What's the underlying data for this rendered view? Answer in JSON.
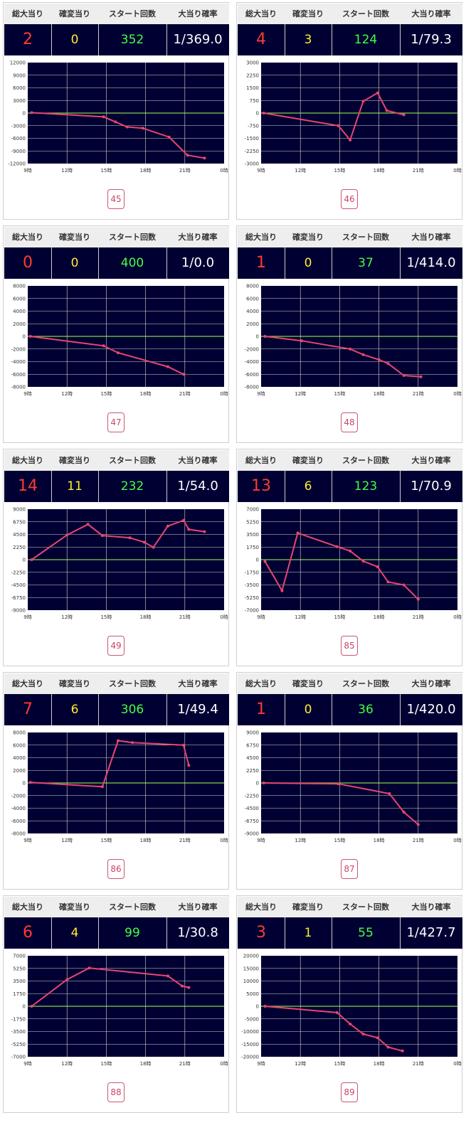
{
  "headers": {
    "total": "総大当り",
    "kakuhen": "確変当り",
    "start": "スタート回数",
    "rate": "大当り確率"
  },
  "x_ticks": [
    "9時",
    "12時",
    "15時",
    "18時",
    "21時",
    "0時"
  ],
  "colors": {
    "panel_bg": "#000033",
    "total": "#ff3b30",
    "kakuhen": "#ffee33",
    "start": "#44ff44",
    "line": "#e8466e",
    "zero_line": "#7fd14a"
  },
  "cards": [
    {
      "id": "45",
      "total": "2",
      "kakuhen": "0",
      "start": "352",
      "rate": "1/369.0",
      "chart_data": {
        "type": "line",
        "y_ticks": [
          "12000",
          "9000",
          "6000",
          "3000",
          "0",
          "-3000",
          "-6000",
          "-9000",
          "-12000"
        ],
        "ylim": [
          -12000,
          12000
        ],
        "xlim": [
          9,
          24
        ],
        "points": [
          [
            9.3,
            100
          ],
          [
            14.8,
            -900
          ],
          [
            15.7,
            -2100
          ],
          [
            16.6,
            -3300
          ],
          [
            17.8,
            -3600
          ],
          [
            19.8,
            -5700
          ],
          [
            21.2,
            -10000
          ],
          [
            22.5,
            -10700
          ]
        ]
      }
    },
    {
      "id": "46",
      "total": "4",
      "kakuhen": "3",
      "start": "124",
      "rate": "1/79.3",
      "chart_data": {
        "type": "line",
        "y_ticks": [
          "3000",
          "2250",
          "1500",
          "750",
          "0",
          "-750",
          "-1500",
          "-2250",
          "-3000"
        ],
        "ylim": [
          -3000,
          3000
        ],
        "xlim": [
          9,
          24
        ],
        "points": [
          [
            9.2,
            0
          ],
          [
            14.9,
            -750
          ],
          [
            15.8,
            -1600
          ],
          [
            16.8,
            700
          ],
          [
            17.9,
            1200
          ],
          [
            18.6,
            150
          ],
          [
            19.9,
            -100
          ]
        ]
      }
    },
    {
      "id": "47",
      "total": "0",
      "kakuhen": "0",
      "start": "400",
      "rate": "1/0.0",
      "chart_data": {
        "type": "line",
        "y_ticks": [
          "8000",
          "6000",
          "4000",
          "2000",
          "0",
          "-2000",
          "-4000",
          "-6000",
          "-8000"
        ],
        "ylim": [
          -8000,
          8000
        ],
        "xlim": [
          9,
          24
        ],
        "points": [
          [
            9.2,
            0
          ],
          [
            14.8,
            -1500
          ],
          [
            15.9,
            -2600
          ],
          [
            19.7,
            -4800
          ],
          [
            20.9,
            -6000
          ]
        ]
      }
    },
    {
      "id": "48",
      "total": "1",
      "kakuhen": "0",
      "start": "37",
      "rate": "1/414.0",
      "chart_data": {
        "type": "line",
        "y_ticks": [
          "8000",
          "6000",
          "4000",
          "2000",
          "0",
          "-2000",
          "-4000",
          "-6000",
          "-8000"
        ],
        "ylim": [
          -8000,
          8000
        ],
        "xlim": [
          9,
          24
        ],
        "points": [
          [
            9.3,
            0
          ],
          [
            12.1,
            -700
          ],
          [
            15.8,
            -2000
          ],
          [
            16.8,
            -2900
          ],
          [
            18.0,
            -3700
          ],
          [
            18.7,
            -4300
          ],
          [
            19.9,
            -6200
          ],
          [
            21.2,
            -6400
          ]
        ]
      }
    },
    {
      "id": "49",
      "total": "14",
      "kakuhen": "11",
      "start": "232",
      "rate": "1/54.0",
      "chart_data": {
        "type": "line",
        "y_ticks": [
          "9000",
          "6750",
          "4500",
          "2250",
          "0",
          "-2250",
          "-4500",
          "-6750",
          "-9000"
        ],
        "ylim": [
          -9000,
          9000
        ],
        "xlim": [
          9,
          24
        ],
        "points": [
          [
            9.3,
            0
          ],
          [
            12.0,
            4400
          ],
          [
            13.6,
            6300
          ],
          [
            14.7,
            4300
          ],
          [
            16.8,
            3900
          ],
          [
            17.9,
            3100
          ],
          [
            18.6,
            2200
          ],
          [
            19.7,
            6000
          ],
          [
            20.9,
            7000
          ],
          [
            21.3,
            5400
          ],
          [
            22.5,
            5000
          ]
        ]
      }
    },
    {
      "id": "85",
      "total": "13",
      "kakuhen": "6",
      "start": "123",
      "rate": "1/70.9",
      "chart_data": {
        "type": "line",
        "y_ticks": [
          "7000",
          "5250",
          "3500",
          "1750",
          "0",
          "-1750",
          "-3500",
          "-5250",
          "-7000"
        ],
        "ylim": [
          -7000,
          7000
        ],
        "xlim": [
          9,
          24
        ],
        "points": [
          [
            9.3,
            -250
          ],
          [
            10.6,
            -4300
          ],
          [
            11.8,
            3700
          ],
          [
            14.8,
            1800
          ],
          [
            15.8,
            1200
          ],
          [
            16.8,
            -200
          ],
          [
            17.9,
            -1000
          ],
          [
            18.7,
            -3100
          ],
          [
            19.9,
            -3500
          ],
          [
            21.0,
            -5500
          ]
        ]
      }
    },
    {
      "id": "86",
      "total": "7",
      "kakuhen": "6",
      "start": "306",
      "rate": "1/49.4",
      "chart_data": {
        "type": "line",
        "y_ticks": [
          "8000",
          "6000",
          "4000",
          "2000",
          "0",
          "-2000",
          "-4000",
          "-6000",
          "-8000"
        ],
        "ylim": [
          -8000,
          8000
        ],
        "xlim": [
          9,
          24
        ],
        "points": [
          [
            9.2,
            100
          ],
          [
            14.7,
            -600
          ],
          [
            15.9,
            6700
          ],
          [
            17.0,
            6400
          ],
          [
            20.9,
            6000
          ],
          [
            21.3,
            2800
          ]
        ]
      }
    },
    {
      "id": "87",
      "total": "1",
      "kakuhen": "0",
      "start": "36",
      "rate": "1/420.0",
      "chart_data": {
        "type": "line",
        "y_ticks": [
          "9000",
          "6750",
          "4500",
          "2250",
          "0",
          "-2250",
          "-4500",
          "-6750",
          "-9000"
        ],
        "ylim": [
          -9000,
          9000
        ],
        "xlim": [
          9,
          24
        ],
        "points": [
          [
            9.2,
            0
          ],
          [
            14.9,
            -150
          ],
          [
            18.8,
            -1900
          ],
          [
            19.9,
            -5200
          ],
          [
            21.0,
            -7400
          ]
        ]
      }
    },
    {
      "id": "88",
      "total": "6",
      "kakuhen": "4",
      "start": "99",
      "rate": "1/30.8",
      "chart_data": {
        "type": "line",
        "y_ticks": [
          "7000",
          "5250",
          "3500",
          "1750",
          "0",
          "-1750",
          "-3500",
          "-5250",
          "-7000"
        ],
        "ylim": [
          -7000,
          7000
        ],
        "xlim": [
          9,
          24
        ],
        "points": [
          [
            9.3,
            0
          ],
          [
            12.0,
            3700
          ],
          [
            13.7,
            5300
          ],
          [
            19.7,
            4200
          ],
          [
            20.8,
            2800
          ],
          [
            21.3,
            2600
          ]
        ]
      }
    },
    {
      "id": "89",
      "total": "3",
      "kakuhen": "1",
      "start": "55",
      "rate": "1/427.7",
      "chart_data": {
        "type": "line",
        "y_ticks": [
          "20000",
          "15000",
          "10000",
          "5000",
          "0",
          "-5000",
          "-10000",
          "-15000",
          "-20000"
        ],
        "ylim": [
          -20000,
          20000
        ],
        "xlim": [
          9,
          24
        ],
        "points": [
          [
            9.3,
            0
          ],
          [
            14.8,
            -2500
          ],
          [
            15.8,
            -7000
          ],
          [
            16.8,
            -11000
          ],
          [
            17.9,
            -12500
          ],
          [
            18.7,
            -16200
          ],
          [
            19.8,
            -17700
          ]
        ]
      }
    }
  ]
}
